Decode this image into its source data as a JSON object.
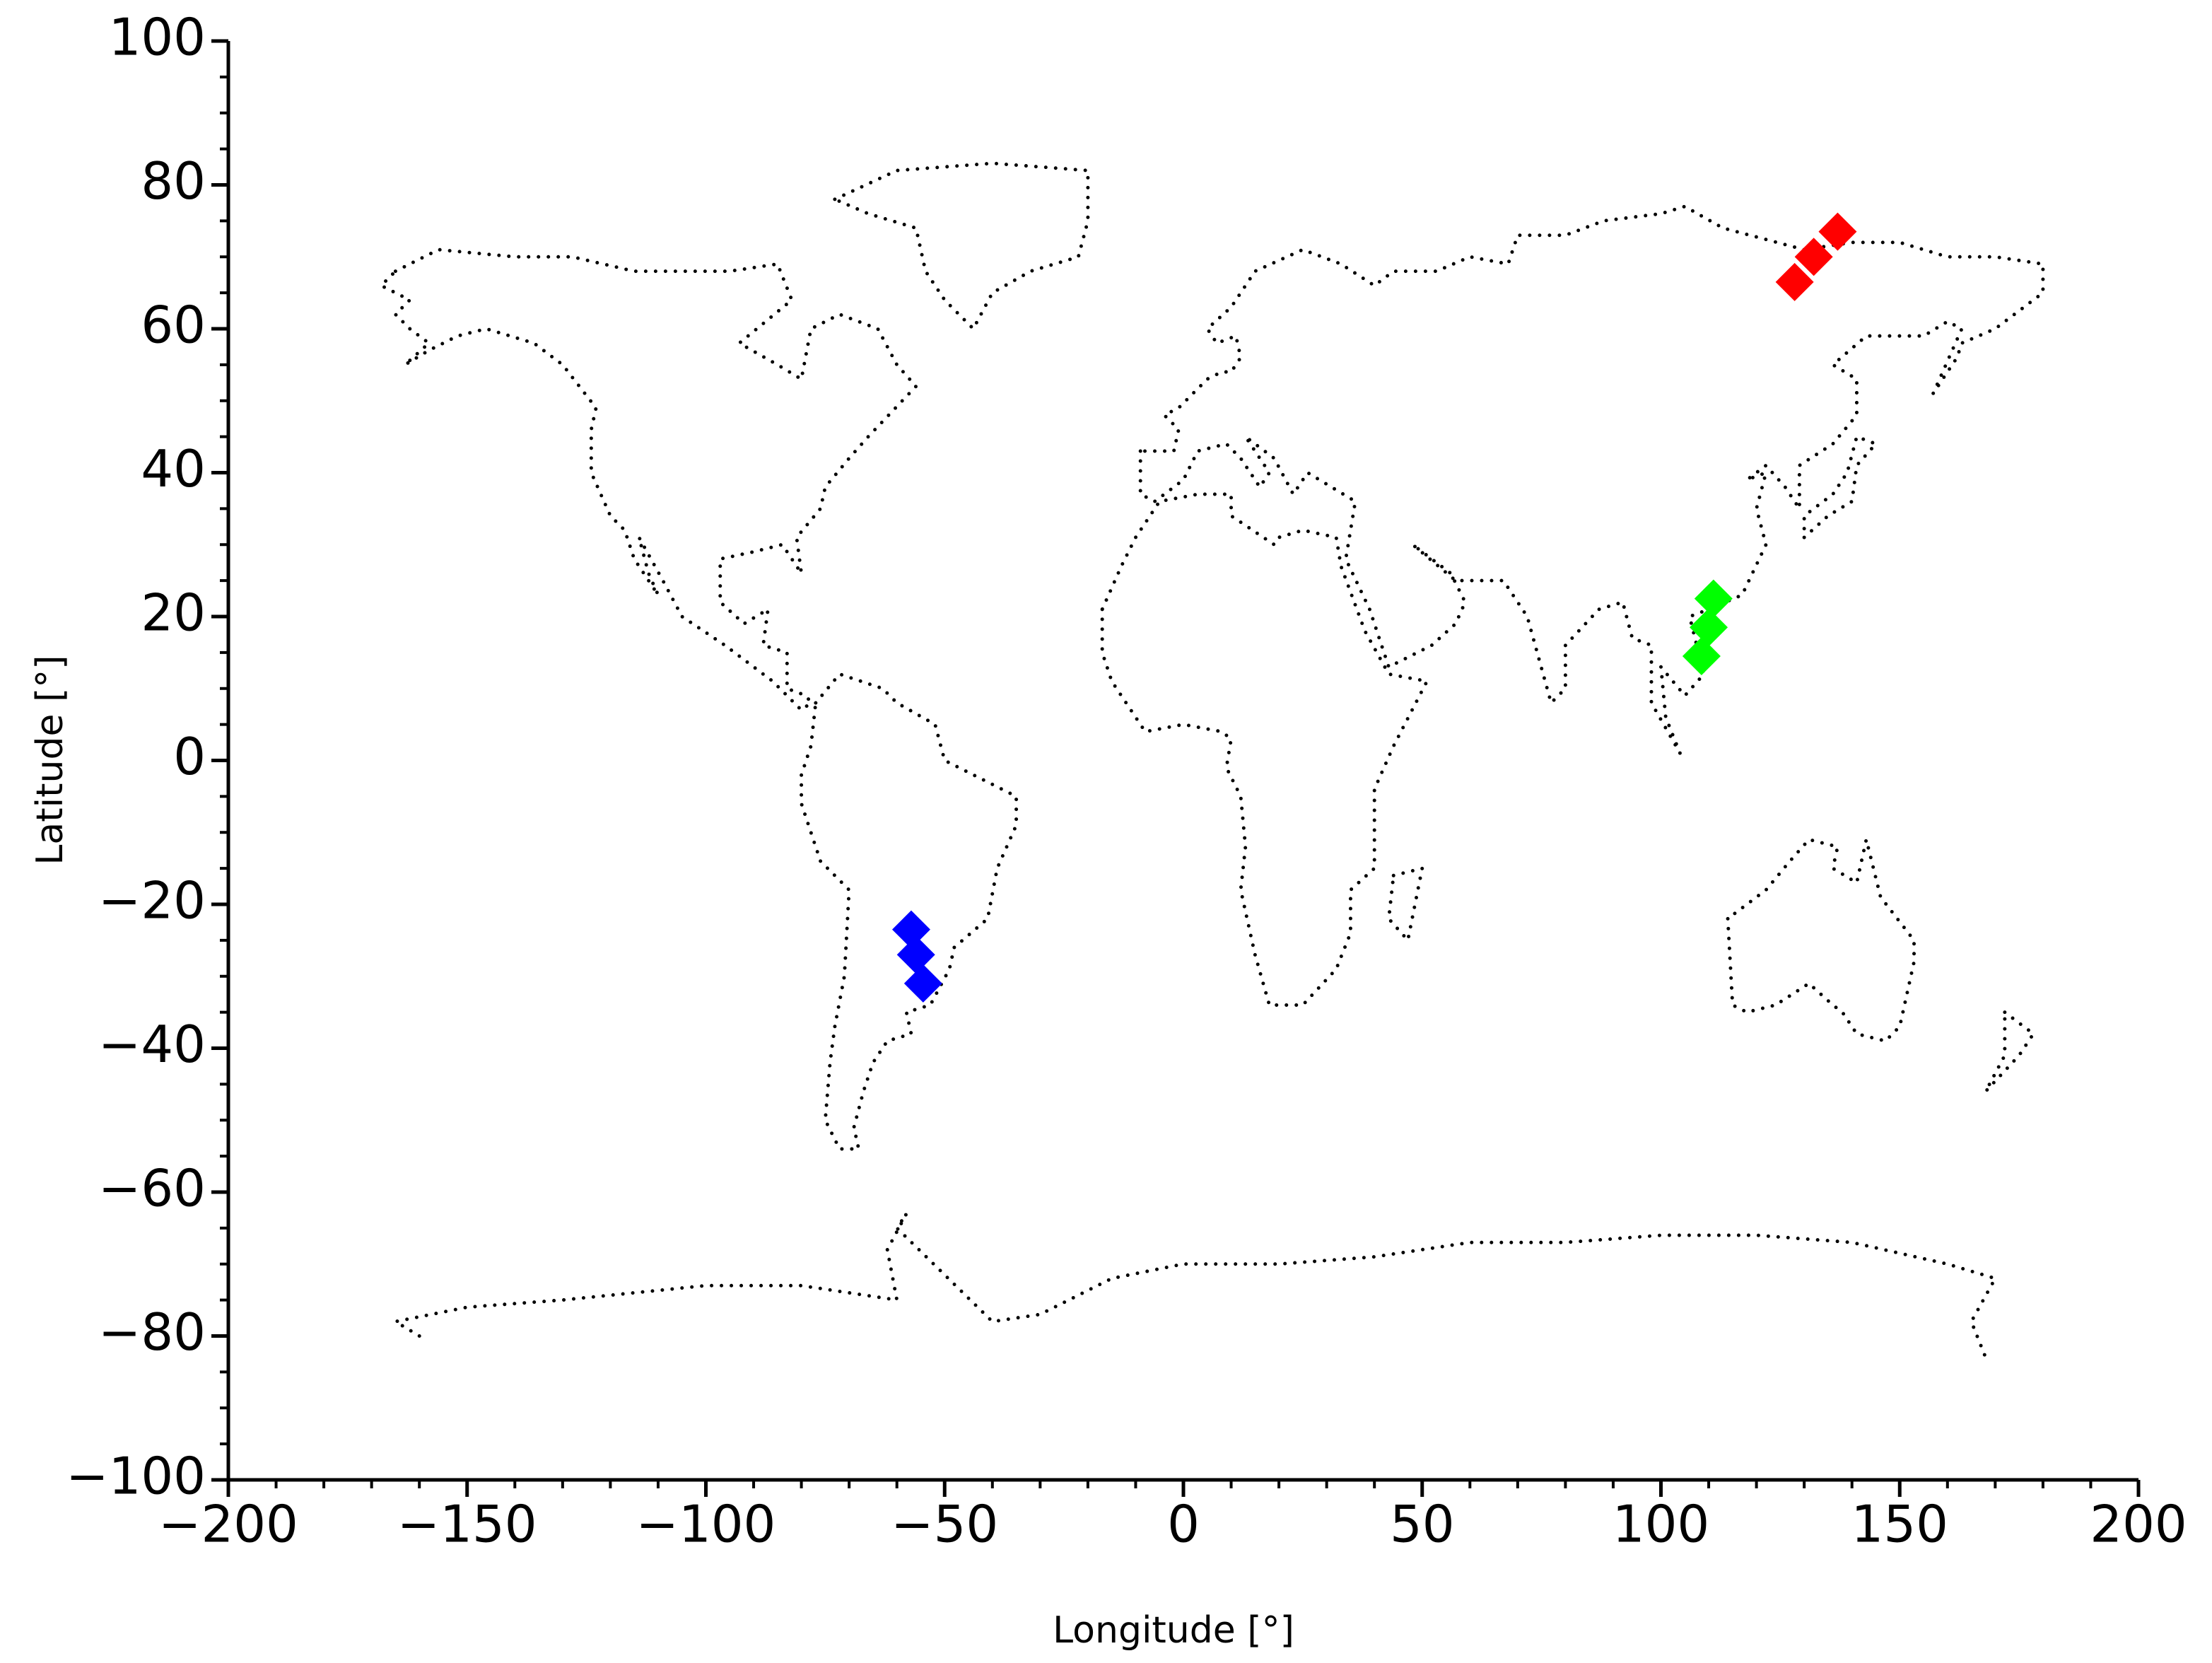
{
  "chart_data": {
    "type": "scatter",
    "xlabel": "Longitude [°]",
    "ylabel": "Latitude [°]",
    "xlim": [
      -200,
      200
    ],
    "ylim": [
      -100,
      100
    ],
    "xticks": [
      {
        "value": -200,
        "label": "−200"
      },
      {
        "value": -150,
        "label": "−150"
      },
      {
        "value": -100,
        "label": "−100"
      },
      {
        "value": -50,
        "label": "−50"
      },
      0,
      50,
      100,
      150,
      200
    ],
    "yticks": [
      {
        "value": -100,
        "label": "−100"
      },
      {
        "value": -80,
        "label": "−80"
      },
      {
        "value": -60,
        "label": "−60"
      },
      {
        "value": -40,
        "label": "−40"
      },
      {
        "value": -20,
        "label": "−20"
      },
      0,
      20,
      40,
      60,
      80,
      100
    ],
    "x_minor_step": 10,
    "y_minor_step": 5,
    "grid": false,
    "series": [
      {
        "color": "#000000",
        "line_style": "dotted",
        "points": [
          [
            -165,
            68
          ],
          [
            -156,
            71
          ],
          [
            -140,
            70
          ],
          [
            -128,
            70
          ],
          [
            -115,
            68
          ],
          [
            -95,
            68
          ],
          [
            -85,
            69
          ],
          [
            -82,
            64
          ],
          [
            -93,
            58
          ],
          [
            -85,
            55
          ],
          [
            -80,
            53
          ],
          [
            -78,
            60
          ],
          [
            -72,
            62
          ],
          [
            -64,
            60
          ],
          [
            -60,
            55
          ],
          [
            -56,
            52
          ],
          [
            -66,
            45
          ],
          [
            -70,
            42
          ],
          [
            -75,
            38
          ],
          [
            -76,
            35
          ],
          [
            -81,
            31
          ],
          [
            -80,
            26
          ],
          [
            -82,
            28
          ],
          [
            -84,
            30
          ],
          [
            -90,
            29
          ],
          [
            -97,
            28
          ],
          [
            -97,
            22
          ],
          [
            -92,
            19
          ],
          [
            -87,
            21
          ],
          [
            -88,
            16
          ],
          [
            -83,
            15
          ],
          [
            -83,
            10
          ],
          [
            -79,
            9
          ],
          [
            -78,
            8
          ],
          [
            -80,
            7
          ],
          [
            -86,
            11
          ],
          [
            -92,
            14
          ],
          [
            -96,
            16
          ],
          [
            -105,
            20
          ],
          [
            -109,
            25
          ],
          [
            -114,
            31
          ],
          [
            -112,
            26
          ],
          [
            -110,
            23
          ],
          [
            -115,
            28
          ],
          [
            -117,
            32
          ],
          [
            -120,
            34
          ],
          [
            -124,
            40
          ],
          [
            -124,
            46
          ],
          [
            -123,
            49
          ],
          [
            -130,
            55
          ],
          [
            -136,
            58
          ],
          [
            -146,
            60
          ],
          [
            -152,
            59
          ],
          [
            -158,
            57
          ],
          [
            -163,
            55
          ],
          [
            -158,
            58
          ],
          [
            -162,
            60
          ],
          [
            -165,
            62
          ],
          [
            -162,
            64
          ],
          [
            -168,
            66
          ],
          [
            -165,
            68
          ],
          null,
          [
            -73,
            78
          ],
          [
            -60,
            82
          ],
          [
            -40,
            83
          ],
          [
            -20,
            82
          ],
          [
            -20,
            75
          ],
          [
            -22,
            70
          ],
          [
            -32,
            68
          ],
          [
            -40,
            65
          ],
          [
            -44,
            60
          ],
          [
            -50,
            64
          ],
          [
            -54,
            68
          ],
          [
            -56,
            74
          ],
          [
            -66,
            76
          ],
          [
            -73,
            78
          ],
          null,
          [
            -77,
            8
          ],
          [
            -72,
            12
          ],
          [
            -63,
            10
          ],
          [
            -60,
            8
          ],
          [
            -52,
            5
          ],
          [
            -50,
            0
          ],
          [
            -44,
            -2
          ],
          [
            -35,
            -5
          ],
          [
            -35,
            -9
          ],
          [
            -39,
            -15
          ],
          [
            -41,
            -22
          ],
          [
            -48,
            -26
          ],
          [
            -49,
            -29
          ],
          [
            -53,
            -34
          ],
          [
            -58,
            -35
          ],
          [
            -57,
            -38
          ],
          [
            -62,
            -39
          ],
          [
            -65,
            -42
          ],
          [
            -67,
            -46
          ],
          [
            -69,
            -51
          ],
          [
            -68,
            -54
          ],
          [
            -72,
            -54
          ],
          [
            -75,
            -50
          ],
          [
            -74,
            -42
          ],
          [
            -73,
            -37
          ],
          [
            -71,
            -30
          ],
          [
            -70,
            -18
          ],
          [
            -76,
            -14
          ],
          [
            -80,
            -6
          ],
          [
            -80,
            -2
          ],
          [
            -78,
            2
          ],
          [
            -77,
            8
          ],
          null,
          [
            -9,
            43
          ],
          [
            -9,
            37
          ],
          [
            -6,
            36
          ],
          [
            0,
            39
          ],
          [
            3,
            43
          ],
          [
            9,
            44
          ],
          [
            12,
            42
          ],
          [
            16,
            38
          ],
          [
            18,
            40
          ],
          [
            13,
            45
          ],
          [
            19,
            42
          ],
          [
            23,
            37
          ],
          [
            26,
            40
          ],
          [
            36,
            36
          ],
          [
            35,
            32
          ],
          [
            34,
            28
          ],
          [
            39,
            21
          ],
          [
            43,
            13
          ],
          [
            52,
            16
          ],
          [
            57,
            19
          ],
          [
            59,
            22
          ],
          [
            56,
            26
          ],
          [
            50,
            29
          ],
          [
            48,
            30
          ],
          [
            57,
            25
          ],
          [
            62,
            25
          ],
          [
            67,
            25
          ],
          [
            72,
            20
          ],
          [
            77,
            8
          ],
          [
            80,
            10
          ],
          [
            80,
            16
          ],
          [
            87,
            21
          ],
          [
            92,
            22
          ],
          [
            94,
            17
          ],
          [
            98,
            16
          ],
          [
            98,
            8
          ],
          [
            104,
            1
          ],
          [
            101,
            6
          ],
          [
            100,
            13
          ],
          [
            105,
            9
          ],
          [
            109,
            12
          ],
          [
            106,
            20
          ],
          [
            110,
            21
          ],
          [
            117,
            23
          ],
          [
            122,
            30
          ],
          [
            120,
            35
          ],
          [
            122,
            40
          ],
          [
            118,
            39
          ],
          [
            122,
            41
          ],
          [
            126,
            38
          ],
          [
            129,
            35
          ],
          [
            129,
            41
          ],
          [
            136,
            44
          ],
          [
            141,
            48
          ],
          [
            141,
            53
          ],
          [
            136,
            55
          ],
          [
            143,
            59
          ],
          [
            155,
            59
          ],
          [
            160,
            61
          ],
          [
            163,
            60
          ],
          [
            157,
            51
          ],
          [
            162,
            56
          ],
          [
            163,
            58
          ],
          [
            170,
            60
          ],
          [
            180,
            65
          ],
          [
            180,
            69
          ],
          [
            170,
            70
          ],
          [
            160,
            70
          ],
          [
            150,
            72
          ],
          [
            140,
            72
          ],
          [
            130,
            71
          ],
          [
            113,
            74
          ],
          [
            105,
            77
          ],
          [
            100,
            76
          ],
          [
            88,
            75
          ],
          [
            80,
            73
          ],
          [
            70,
            73
          ],
          [
            68,
            69
          ],
          [
            60,
            70
          ],
          [
            53,
            68
          ],
          [
            44,
            68
          ],
          [
            40,
            66
          ],
          [
            33,
            69
          ],
          [
            25,
            71
          ],
          [
            15,
            68
          ],
          [
            10,
            63
          ],
          [
            5,
            60
          ],
          [
            7,
            58
          ],
          [
            11,
            59
          ],
          [
            12,
            56
          ],
          [
            10,
            54
          ],
          [
            8,
            54
          ],
          [
            5,
            53
          ],
          [
            2,
            51
          ],
          [
            -1,
            49
          ],
          [
            -4,
            48
          ],
          [
            -1,
            46
          ],
          [
            -2,
            43
          ],
          [
            -9,
            43
          ],
          null,
          [
            -17,
            21
          ],
          [
            -17,
            15
          ],
          [
            -15,
            11
          ],
          [
            -8,
            4
          ],
          [
            0,
            5
          ],
          [
            8,
            4
          ],
          [
            10,
            3
          ],
          [
            9,
            -1
          ],
          [
            12,
            -5
          ],
          [
            13,
            -12
          ],
          [
            12,
            -18
          ],
          [
            15,
            -27
          ],
          [
            18,
            -34
          ],
          [
            25,
            -34
          ],
          [
            32,
            -29
          ],
          [
            35,
            -24
          ],
          [
            35,
            -18
          ],
          [
            40,
            -15
          ],
          [
            40,
            -10
          ],
          [
            40,
            -4
          ],
          [
            44,
            2
          ],
          [
            51,
            11
          ],
          [
            43,
            12
          ],
          [
            38,
            18
          ],
          [
            33,
            27
          ],
          [
            32,
            31
          ],
          [
            25,
            32
          ],
          [
            20,
            31
          ],
          [
            19,
            30
          ],
          [
            10,
            34
          ],
          [
            10,
            37
          ],
          [
            3,
            37
          ],
          [
            -5,
            36
          ],
          [
            -10,
            31
          ],
          [
            -13,
            27
          ],
          [
            -17,
            21
          ],
          null,
          [
            44,
            -16
          ],
          [
            50,
            -15
          ],
          [
            47,
            -25
          ],
          [
            43,
            -22
          ],
          [
            44,
            -16
          ],
          null,
          [
            114,
            -22
          ],
          [
            115,
            -34
          ],
          [
            118,
            -35
          ],
          [
            124,
            -34
          ],
          [
            131,
            -31
          ],
          [
            136,
            -34
          ],
          [
            138,
            -35
          ],
          [
            141,
            -38
          ],
          [
            147,
            -39
          ],
          [
            150,
            -37
          ],
          [
            153,
            -28
          ],
          [
            153,
            -25
          ],
          [
            146,
            -19
          ],
          [
            143,
            -11
          ],
          [
            141,
            -17
          ],
          [
            136,
            -15
          ],
          [
            137,
            -12
          ],
          [
            131,
            -11
          ],
          [
            127,
            -14
          ],
          [
            122,
            -18
          ],
          [
            114,
            -22
          ],
          null,
          [
            130,
            31
          ],
          [
            135,
            34
          ],
          [
            140,
            36
          ],
          [
            141,
            41
          ],
          [
            145,
            44
          ],
          [
            141,
            45
          ],
          [
            139,
            40
          ],
          [
            136,
            37
          ],
          [
            130,
            34
          ],
          [
            130,
            31
          ],
          null,
          [
            172,
            -35
          ],
          [
            178,
            -38
          ],
          [
            175,
            -41
          ],
          [
            168,
            -46
          ],
          [
            172,
            -41
          ],
          [
            172,
            -35
          ],
          null,
          [
            -160,
            -80
          ],
          [
            -165,
            -78
          ],
          [
            -150,
            -76
          ],
          [
            -130,
            -75
          ],
          [
            -100,
            -73
          ],
          [
            -80,
            -73
          ],
          [
            -60,
            -75
          ],
          [
            -62,
            -68
          ],
          [
            -58,
            -63
          ],
          [
            -60,
            -65
          ],
          [
            -40,
            -78
          ],
          [
            -30,
            -77
          ],
          [
            -15,
            -72
          ],
          [
            0,
            -70
          ],
          [
            20,
            -70
          ],
          [
            40,
            -69
          ],
          [
            60,
            -67
          ],
          [
            80,
            -67
          ],
          [
            100,
            -66
          ],
          [
            120,
            -66
          ],
          [
            140,
            -67
          ],
          [
            160,
            -70
          ],
          [
            170,
            -72
          ],
          [
            165,
            -78
          ],
          [
            168,
            -83
          ]
        ]
      },
      {
        "color": "#ff0000",
        "marker": "diamond",
        "points": [
          [
            128,
            66.5
          ],
          [
            132,
            70
          ],
          [
            137,
            73.5
          ]
        ]
      },
      {
        "color": "#00ff00",
        "marker": "diamond",
        "points": [
          [
            111,
            22.5
          ],
          [
            110,
            18.5
          ],
          [
            108.5,
            14.5
          ]
        ]
      },
      {
        "color": "#0000ff",
        "marker": "diamond",
        "points": [
          [
            -57,
            -23.5
          ],
          [
            -56,
            -27
          ],
          [
            -54.5,
            -31
          ]
        ]
      }
    ]
  }
}
